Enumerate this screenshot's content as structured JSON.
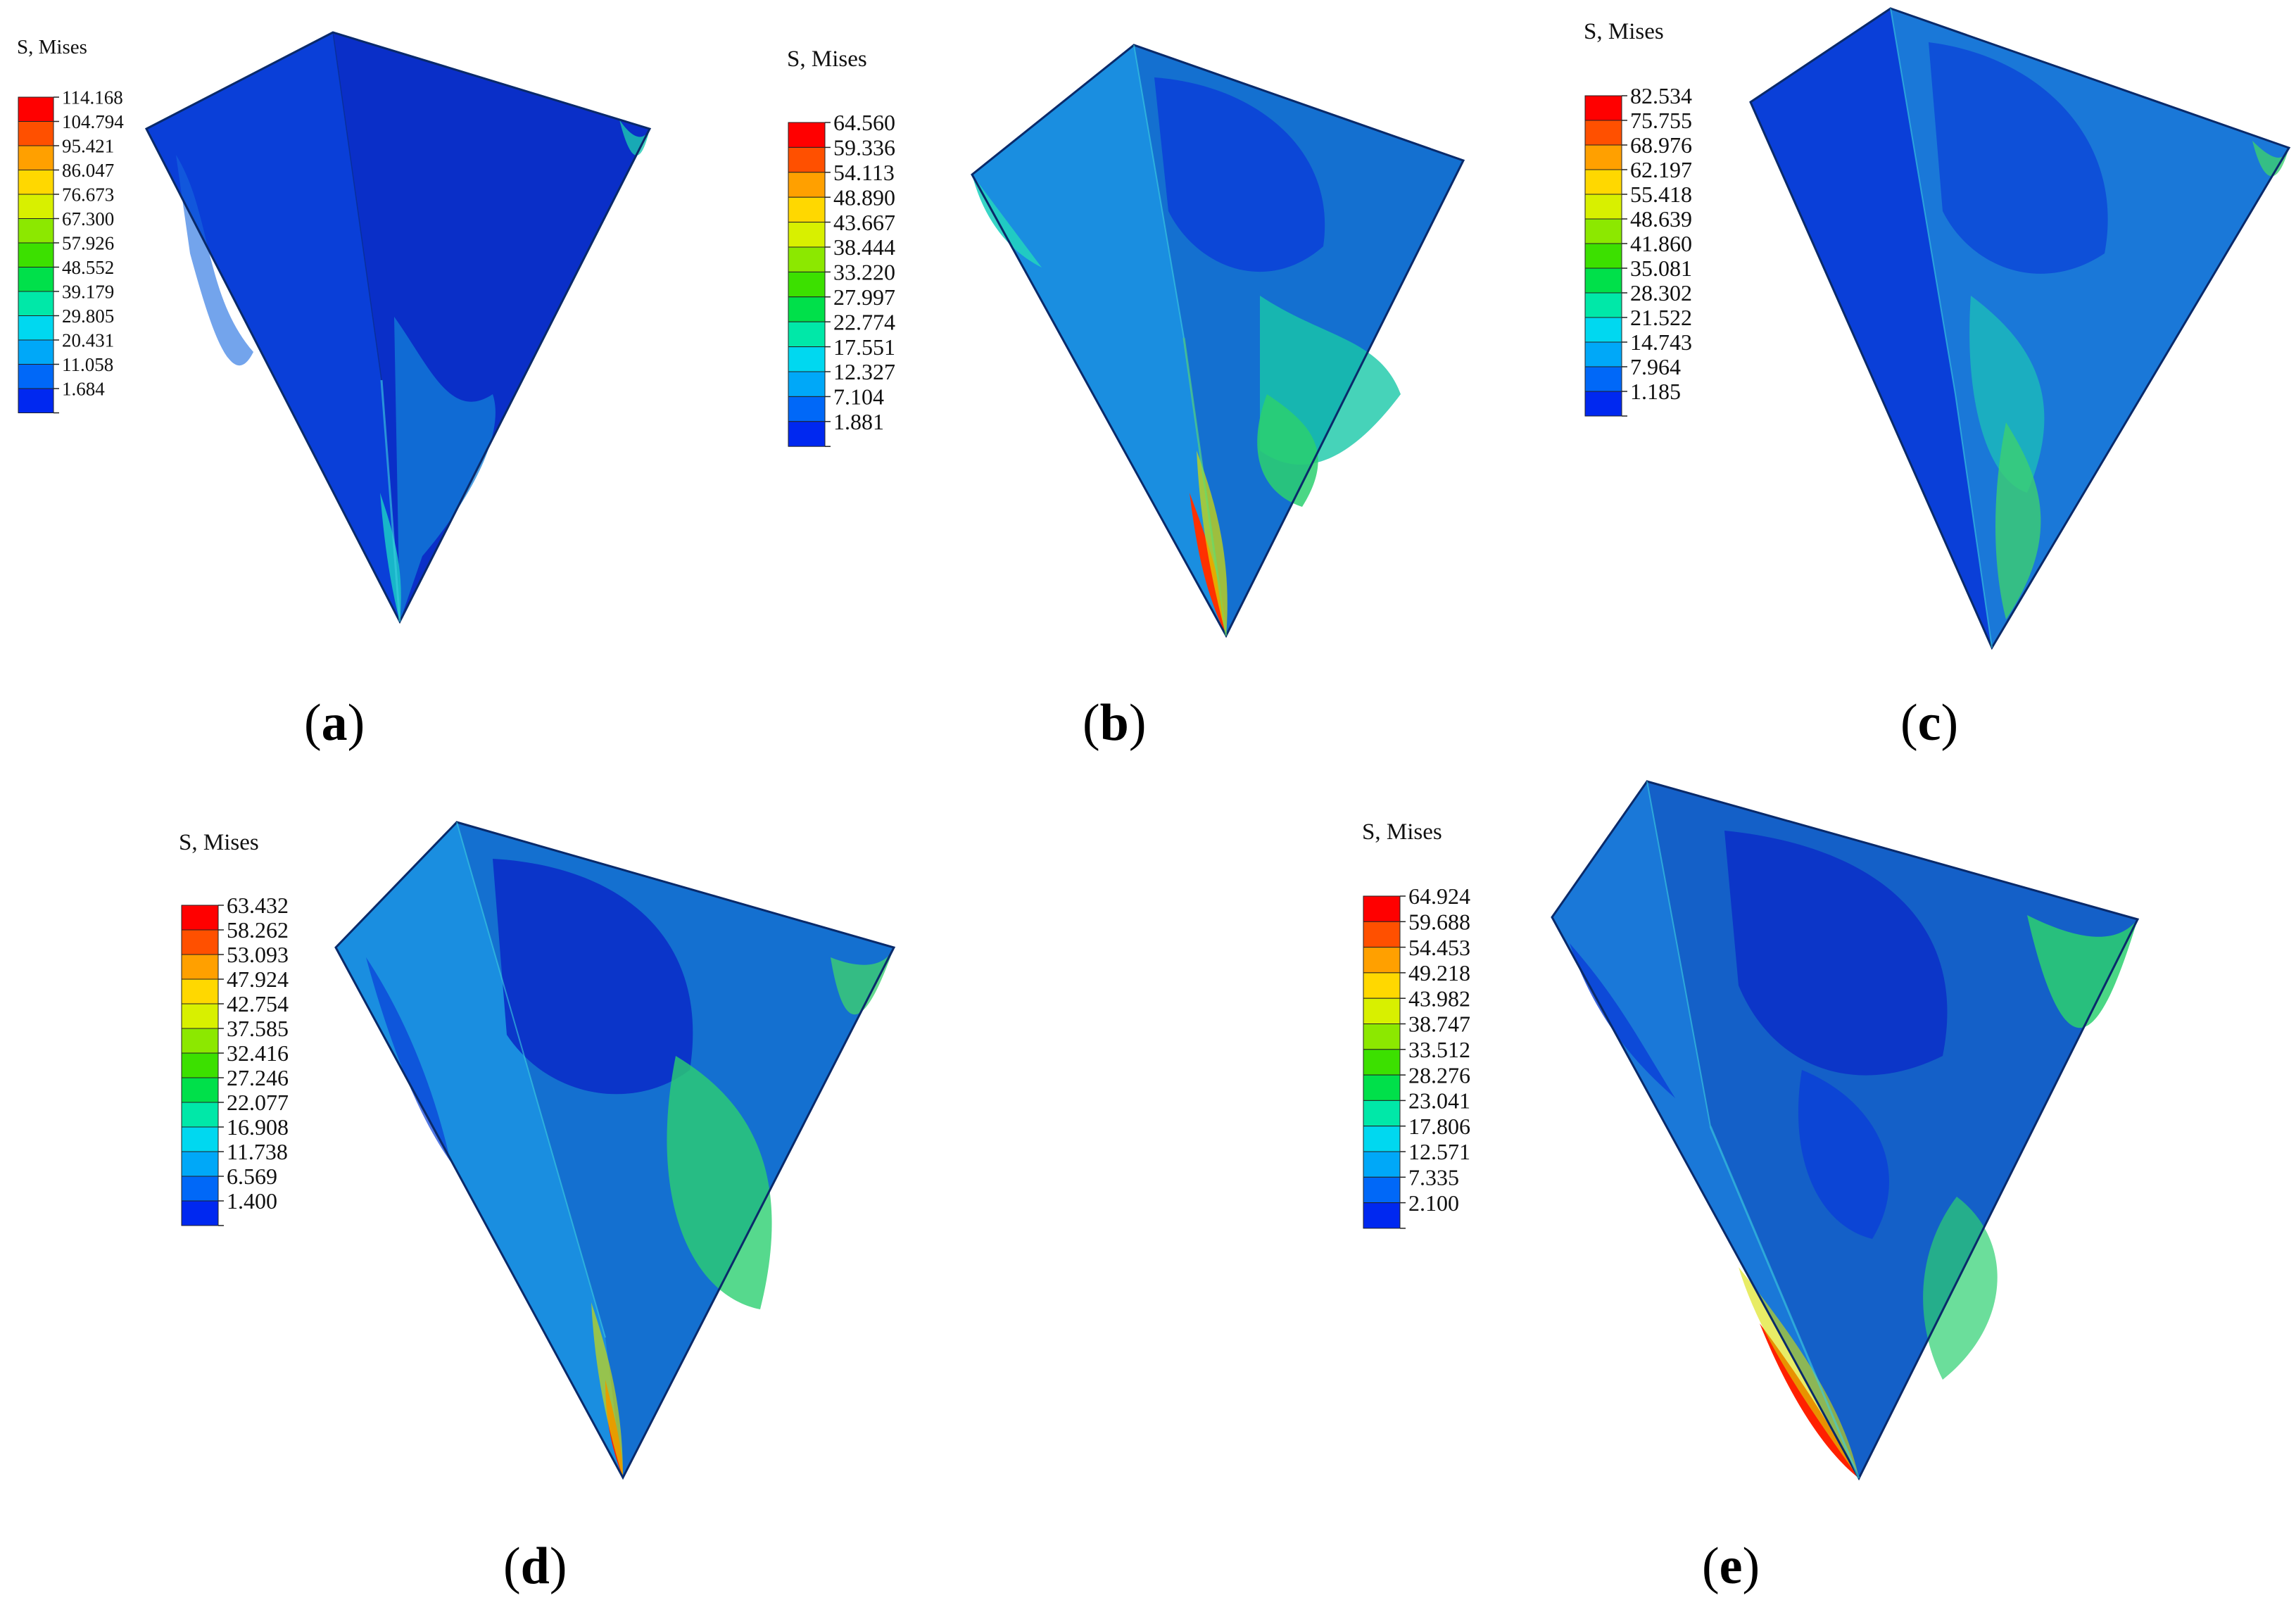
{
  "legend_title": "S, Mises",
  "color_scale": [
    "#ff0000",
    "#ff5000",
    "#ffa000",
    "#ffd800",
    "#d8f000",
    "#8ce800",
    "#3ce000",
    "#00e04a",
    "#00e8a8",
    "#00d8f0",
    "#00a8f8",
    "#0068f8",
    "#0028f0"
  ],
  "panels": [
    {
      "id": "a",
      "label_open": "(",
      "label_letter": "a",
      "label_close": ")",
      "legend_values": [
        "114.168",
        "104.794",
        "95.421",
        "86.047",
        "76.673",
        "67.300",
        "57.926",
        "48.552",
        "39.179",
        "29.805",
        "20.431",
        "11.058",
        "1.684"
      ]
    },
    {
      "id": "b",
      "label_open": "(",
      "label_letter": "b",
      "label_close": ")",
      "legend_values": [
        "64.560",
        "59.336",
        "54.113",
        "48.890",
        "43.667",
        "38.444",
        "33.220",
        "27.997",
        "22.774",
        "17.551",
        "12.327",
        "7.104",
        "1.881"
      ]
    },
    {
      "id": "c",
      "label_open": "(",
      "label_letter": "c",
      "label_close": ")",
      "legend_values": [
        "82.534",
        "75.755",
        "68.976",
        "62.197",
        "55.418",
        "48.639",
        "41.860",
        "35.081",
        "28.302",
        "21.522",
        "14.743",
        "7.964",
        "1.185"
      ]
    },
    {
      "id": "d",
      "label_open": "(",
      "label_letter": "d",
      "label_close": ")",
      "legend_values": [
        "63.432",
        "58.262",
        "53.093",
        "47.924",
        "42.754",
        "37.585",
        "32.416",
        "27.246",
        "22.077",
        "16.908",
        "11.738",
        "6.569",
        "1.400"
      ]
    },
    {
      "id": "e",
      "label_open": "(",
      "label_letter": "e",
      "label_close": ")",
      "legend_values": [
        "64.924",
        "59.688",
        "54.453",
        "49.218",
        "43.982",
        "38.747",
        "33.512",
        "28.276",
        "23.041",
        "17.806",
        "12.571",
        "7.335",
        "2.100"
      ]
    }
  ]
}
